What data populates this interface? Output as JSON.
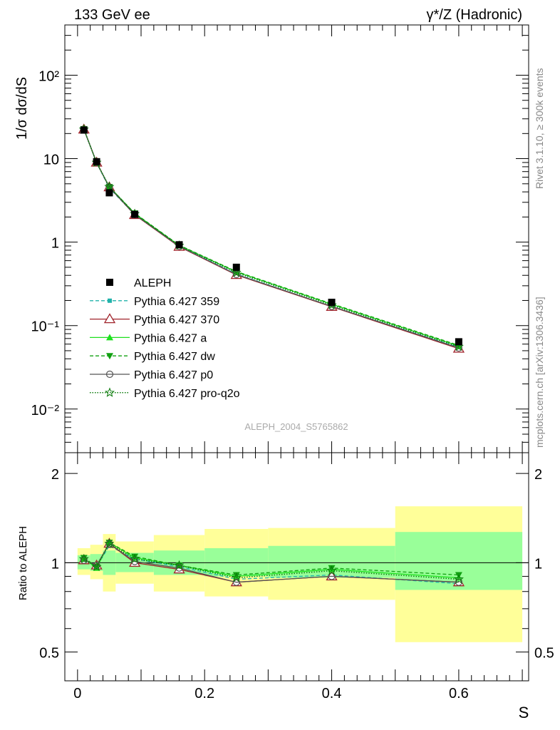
{
  "header": {
    "left": "133 GeV ee",
    "right": "γ*/Z (Hadronic)"
  },
  "side_text": {
    "rivet": "Rivet 3.1.10, ≥ 300k events",
    "mcplots": "mcplots.cern.ch [arXiv:1306.3436]"
  },
  "watermark": "ALEPH_2004_S5765862",
  "colors": {
    "data": "#000000",
    "p359": "#20b2aa",
    "p370": "#a0222a",
    "pa": "#1ee01e",
    "pdw": "#11a011",
    "pp0": "#555555",
    "pq2o": "#0a7a0a",
    "band_inner": "#99ff99",
    "band_outer": "#ffff99"
  },
  "chart_data": [
    {
      "type": "scatter",
      "title": "",
      "xlabel": "S",
      "ylabel": "1/σ dσ/dS",
      "yscale": "log",
      "xlim": [
        -0.02,
        0.71
      ],
      "ylim": [
        0.003,
        400
      ],
      "y_ticks": [
        {
          "v": 100,
          "label": "10²"
        },
        {
          "v": 10,
          "label": "10"
        },
        {
          "v": 1,
          "label": "1"
        },
        {
          "v": 0.1,
          "label": "10⁻¹"
        },
        {
          "v": 0.01,
          "label": "10⁻²"
        }
      ],
      "x": [
        0.01,
        0.03,
        0.05,
        0.09,
        0.16,
        0.25,
        0.4,
        0.6
      ],
      "data": {
        "name": "ALEPH",
        "values": [
          22.0,
          9.2,
          3.9,
          2.15,
          0.93,
          0.5,
          0.19,
          0.064
        ]
      },
      "series": [
        {
          "name": "Pythia 6.427 359",
          "key": "p359",
          "values": [
            22.3,
            8.9,
            4.45,
            2.13,
            0.9,
            0.415,
            0.17,
            0.055
          ]
        },
        {
          "name": "Pythia 6.427 370",
          "key": "p370",
          "values": [
            22.4,
            9.0,
            4.55,
            2.12,
            0.88,
            0.405,
            0.168,
            0.053
          ]
        },
        {
          "name": "Pythia 6.427 a",
          "key": "pa",
          "values": [
            22.5,
            8.9,
            4.6,
            2.2,
            0.91,
            0.44,
            0.18,
            0.057
          ]
        },
        {
          "name": "Pythia 6.427 dw",
          "key": "pdw",
          "values": [
            22.7,
            8.9,
            4.6,
            2.22,
            0.92,
            0.445,
            0.183,
            0.058
          ]
        },
        {
          "name": "Pythia 6.427 p0",
          "key": "pp0",
          "values": [
            22.4,
            9.0,
            4.55,
            2.14,
            0.89,
            0.41,
            0.17,
            0.054
          ]
        },
        {
          "name": "Pythia 6.427 pro-q2o",
          "key": "pq2o",
          "values": [
            22.5,
            9.0,
            4.6,
            2.18,
            0.91,
            0.43,
            0.176,
            0.056
          ]
        }
      ],
      "legend": "center-left"
    },
    {
      "type": "line",
      "xlabel": "S",
      "ylabel": "Ratio to ALEPH",
      "yscale": "log",
      "xlim": [
        -0.02,
        0.71
      ],
      "ylim": [
        0.4,
        2.35
      ],
      "x_ticks": [
        {
          "v": 0.0,
          "label": "0"
        },
        {
          "v": 0.2,
          "label": "0.2"
        },
        {
          "v": 0.4,
          "label": "0.4"
        },
        {
          "v": 0.6,
          "label": "0.6"
        }
      ],
      "y_ticks": [
        {
          "v": 0.5,
          "label": "0.5"
        },
        {
          "v": 1,
          "label": "1"
        },
        {
          "v": 2,
          "label": "2"
        }
      ],
      "bins": [
        [
          0.0,
          0.02
        ],
        [
          0.02,
          0.04
        ],
        [
          0.04,
          0.06
        ],
        [
          0.06,
          0.12
        ],
        [
          0.12,
          0.2
        ],
        [
          0.2,
          0.3
        ],
        [
          0.3,
          0.5
        ],
        [
          0.5,
          0.7
        ]
      ],
      "band_inner": [
        [
          0.95,
          1.06
        ],
        [
          0.94,
          1.07
        ],
        [
          0.91,
          1.1
        ],
        [
          0.93,
          1.08
        ],
        [
          0.91,
          1.1
        ],
        [
          0.9,
          1.12
        ],
        [
          0.89,
          1.14
        ],
        [
          0.81,
          1.27
        ]
      ],
      "band_outer": [
        [
          0.91,
          1.12
        ],
        [
          0.88,
          1.15
        ],
        [
          0.8,
          1.25
        ],
        [
          0.85,
          1.18
        ],
        [
          0.8,
          1.24
        ],
        [
          0.77,
          1.3
        ],
        [
          0.75,
          1.31
        ],
        [
          0.54,
          1.55
        ]
      ],
      "x": [
        0.01,
        0.03,
        0.05,
        0.09,
        0.16,
        0.25,
        0.4,
        0.6
      ],
      "series": [
        {
          "name": "Pythia 6.427 359",
          "key": "p359",
          "values": [
            1.02,
            0.97,
            1.14,
            1.03,
            0.97,
            0.88,
            0.91,
            0.85
          ]
        },
        {
          "name": "Pythia 6.427 370",
          "key": "p370",
          "values": [
            1.02,
            0.98,
            1.16,
            1.0,
            0.95,
            0.86,
            0.9,
            0.86
          ]
        },
        {
          "name": "Pythia 6.427 a",
          "key": "pa",
          "values": [
            1.03,
            0.96,
            1.17,
            1.04,
            0.98,
            0.9,
            0.95,
            0.89
          ]
        },
        {
          "name": "Pythia 6.427 dw",
          "key": "pdw",
          "values": [
            1.04,
            0.97,
            1.17,
            1.05,
            0.98,
            0.91,
            0.96,
            0.91
          ]
        },
        {
          "name": "Pythia 6.427 p0",
          "key": "pp0",
          "values": [
            1.02,
            0.98,
            1.16,
            1.01,
            0.96,
            0.86,
            0.9,
            0.86
          ]
        },
        {
          "name": "Pythia 6.427 pro-q2o",
          "key": "pq2o",
          "values": [
            1.03,
            0.97,
            1.16,
            1.03,
            0.98,
            0.89,
            0.94,
            0.88
          ]
        }
      ]
    }
  ]
}
